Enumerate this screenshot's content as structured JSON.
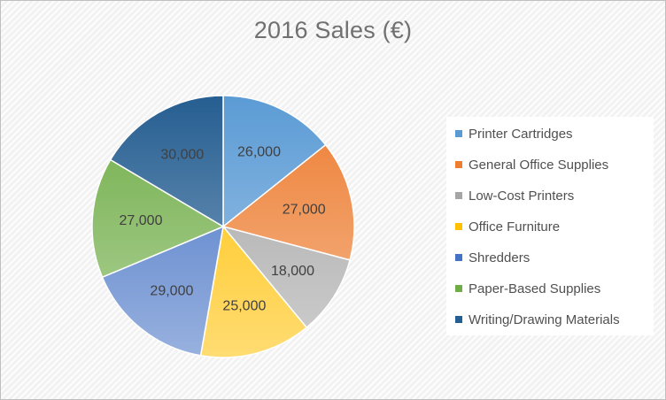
{
  "chart_data": {
    "type": "pie",
    "title": "2016 Sales (€)",
    "categories": [
      "Printer Cartridges",
      "General Office Supplies",
      "Low-Cost Printers",
      "Office Furniture",
      "Shredders",
      "Paper-Based Supplies",
      "Writing/Drawing Materials"
    ],
    "values": [
      26000,
      27000,
      18000,
      25000,
      29000,
      27000,
      30000
    ],
    "data_labels": [
      "26,000",
      "27,000",
      "18,000",
      "25,000",
      "29,000",
      "27,000",
      "30,000"
    ],
    "colors": [
      "#5b9bd5",
      "#ed7d31",
      "#a5a5a5",
      "#ffc000",
      "#4472c4",
      "#70ad47",
      "#255e91"
    ],
    "legend_position": "right",
    "start_angle": "12 o'clock, clockwise"
  }
}
